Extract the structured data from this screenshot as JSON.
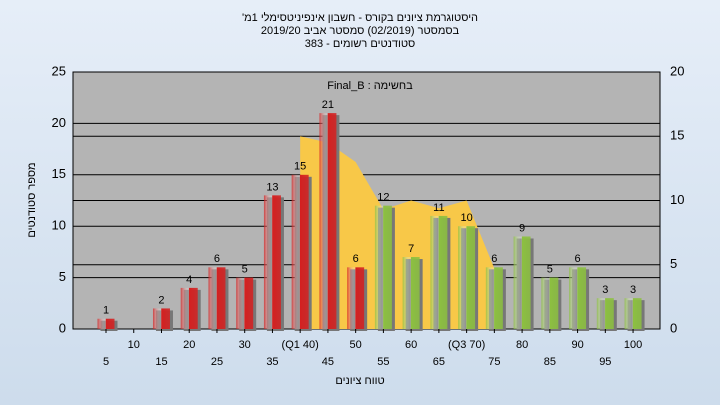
{
  "chart_data": {
    "type": "bar",
    "title": "היסטוגרמת ציונים בקורס - חשבון אינפיניטסימלי 1מ'",
    "subtitle": "בסמסטר  (02/2019)  סמסטר אביב  2019/20",
    "subtitle2": "סטודנטים רשומים - 383",
    "annotation": "בחשימה : Final_B",
    "x_label": "טווח ציונים",
    "y_label": "מספר סטודנטים",
    "categories": [
      "5",
      "10",
      "15",
      "20",
      "25",
      "30",
      "35",
      "(Q1 40)",
      "45",
      "50",
      "55",
      "60",
      "65",
      "(Q3 70)",
      "75",
      "80",
      "85",
      "90",
      "95",
      "100"
    ],
    "series": [
      {
        "type": "bar",
        "values": [
          1,
          0,
          2,
          4,
          6,
          5,
          13,
          15,
          21,
          6,
          12,
          7,
          11,
          10,
          6,
          9,
          5,
          6,
          3,
          3
        ],
        "colors": [
          "#d42020",
          "#d42020",
          "#d42020",
          "#d42020",
          "#d42020",
          "#d42020",
          "#d42020",
          "#d42020",
          "#d42020",
          "#d42020",
          "#8cc040",
          "#8cc040",
          "#8cc040",
          "#8cc040",
          "#8cc040",
          "#8cc040",
          "#8cc040",
          "#8cc040",
          "#8cc040",
          "#8cc040"
        ]
      },
      {
        "type": "area",
        "axis": "y2",
        "color": "#f8c848",
        "values": [
          null,
          null,
          null,
          null,
          null,
          null,
          null,
          15,
          14.5,
          13,
          9.3,
          10,
          9.4,
          10,
          4.7,
          null,
          null,
          null,
          null,
          null
        ]
      }
    ],
    "ylim": [
      0,
      25
    ],
    "yticks": [
      0,
      5,
      10,
      15,
      20,
      25
    ],
    "y2lim": [
      0,
      20
    ],
    "y2ticks": [
      0,
      5,
      10,
      15,
      20
    ],
    "grid": true
  }
}
